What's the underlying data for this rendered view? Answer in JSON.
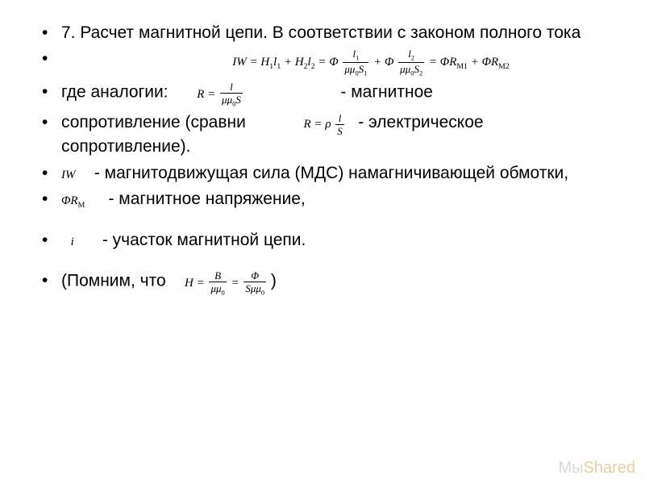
{
  "meta": {
    "type": "slide",
    "background_color": "#ffffff",
    "text_color": "#000000",
    "font_family": "Arial",
    "base_fontsize_pt": 16,
    "formula_font_family": "Times New Roman",
    "formula_fontsize_pt": 11
  },
  "bullets": [
    {
      "id": "b1",
      "text": "7. Расчет магнитной цепи. В соответствии с законом полного тока"
    },
    {
      "id": "b2",
      "text_before": "где аналогии:",
      "text_after": "- магнитное"
    },
    {
      "id": "b3",
      "text_before": "сопротивление (сравни",
      "text_after": "- электрическое сопротивление)."
    },
    {
      "id": "b4",
      "text_after": "- магнитодвижущая сила (МДС) намагничивающей обмотки,"
    },
    {
      "id": "b5",
      "text_after": "- магнитное напряжение,"
    },
    {
      "id": "b6",
      "text_after": "- участок магнитной цепи."
    },
    {
      "id": "b7",
      "text_before": "(Помним, что",
      "text_after": ")"
    }
  ],
  "equations": {
    "main": "IW = H₁l₁ + H₂l₂ = Φ · l₁/(μμ₀S₁) + Φ · l₂/(μμ₀S₂) = ΦR_M1 + ΦR_M2",
    "main_parts": {
      "lhs": "IW",
      "eq1_a": "H",
      "eq1_a_sub": "1",
      "eq1_b": "l",
      "eq1_b_sub": "1",
      "eq1_c": "H",
      "eq1_c_sub": "2",
      "eq1_d": "l",
      "eq1_d_sub": "2",
      "phi": "Φ",
      "frac1_num": "l",
      "frac1_num_sub": "1",
      "frac1_den": "μμ",
      "frac1_den_sub": "0",
      "frac1_den2": "S",
      "frac1_den2_sub": "1",
      "frac2_num": "l",
      "frac2_num_sub": "2",
      "frac2_den": "μμ",
      "frac2_den_sub": "0",
      "frac2_den2": "S",
      "frac2_den2_sub": "2",
      "rhs_a": "ΦR",
      "rhs_a_sub": "M1",
      "rhs_b": "ΦR",
      "rhs_b_sub": "M2"
    },
    "R_mag": {
      "lhs": "R",
      "num": "l",
      "den_a": "μμ",
      "den_a_sub": "0",
      "den_b": "S"
    },
    "R_elec": {
      "lhs": "R",
      "rho": "ρ",
      "num": "l",
      "den": "S"
    },
    "IW": "IW",
    "PhiRM": {
      "a": "ΦR",
      "sub": "M"
    },
    "i_seg": "i",
    "H_expr": {
      "lhs": "H",
      "num1": "B",
      "den1_a": "μμ",
      "den1_sub": "0",
      "num2": "Φ",
      "den2_a": "Sμμ",
      "den2_sub": "0"
    }
  },
  "watermark": {
    "part1": "Мы",
    "part2": "Shared",
    "color1": "#d8d8d8",
    "color2": "#e6cfa0"
  }
}
